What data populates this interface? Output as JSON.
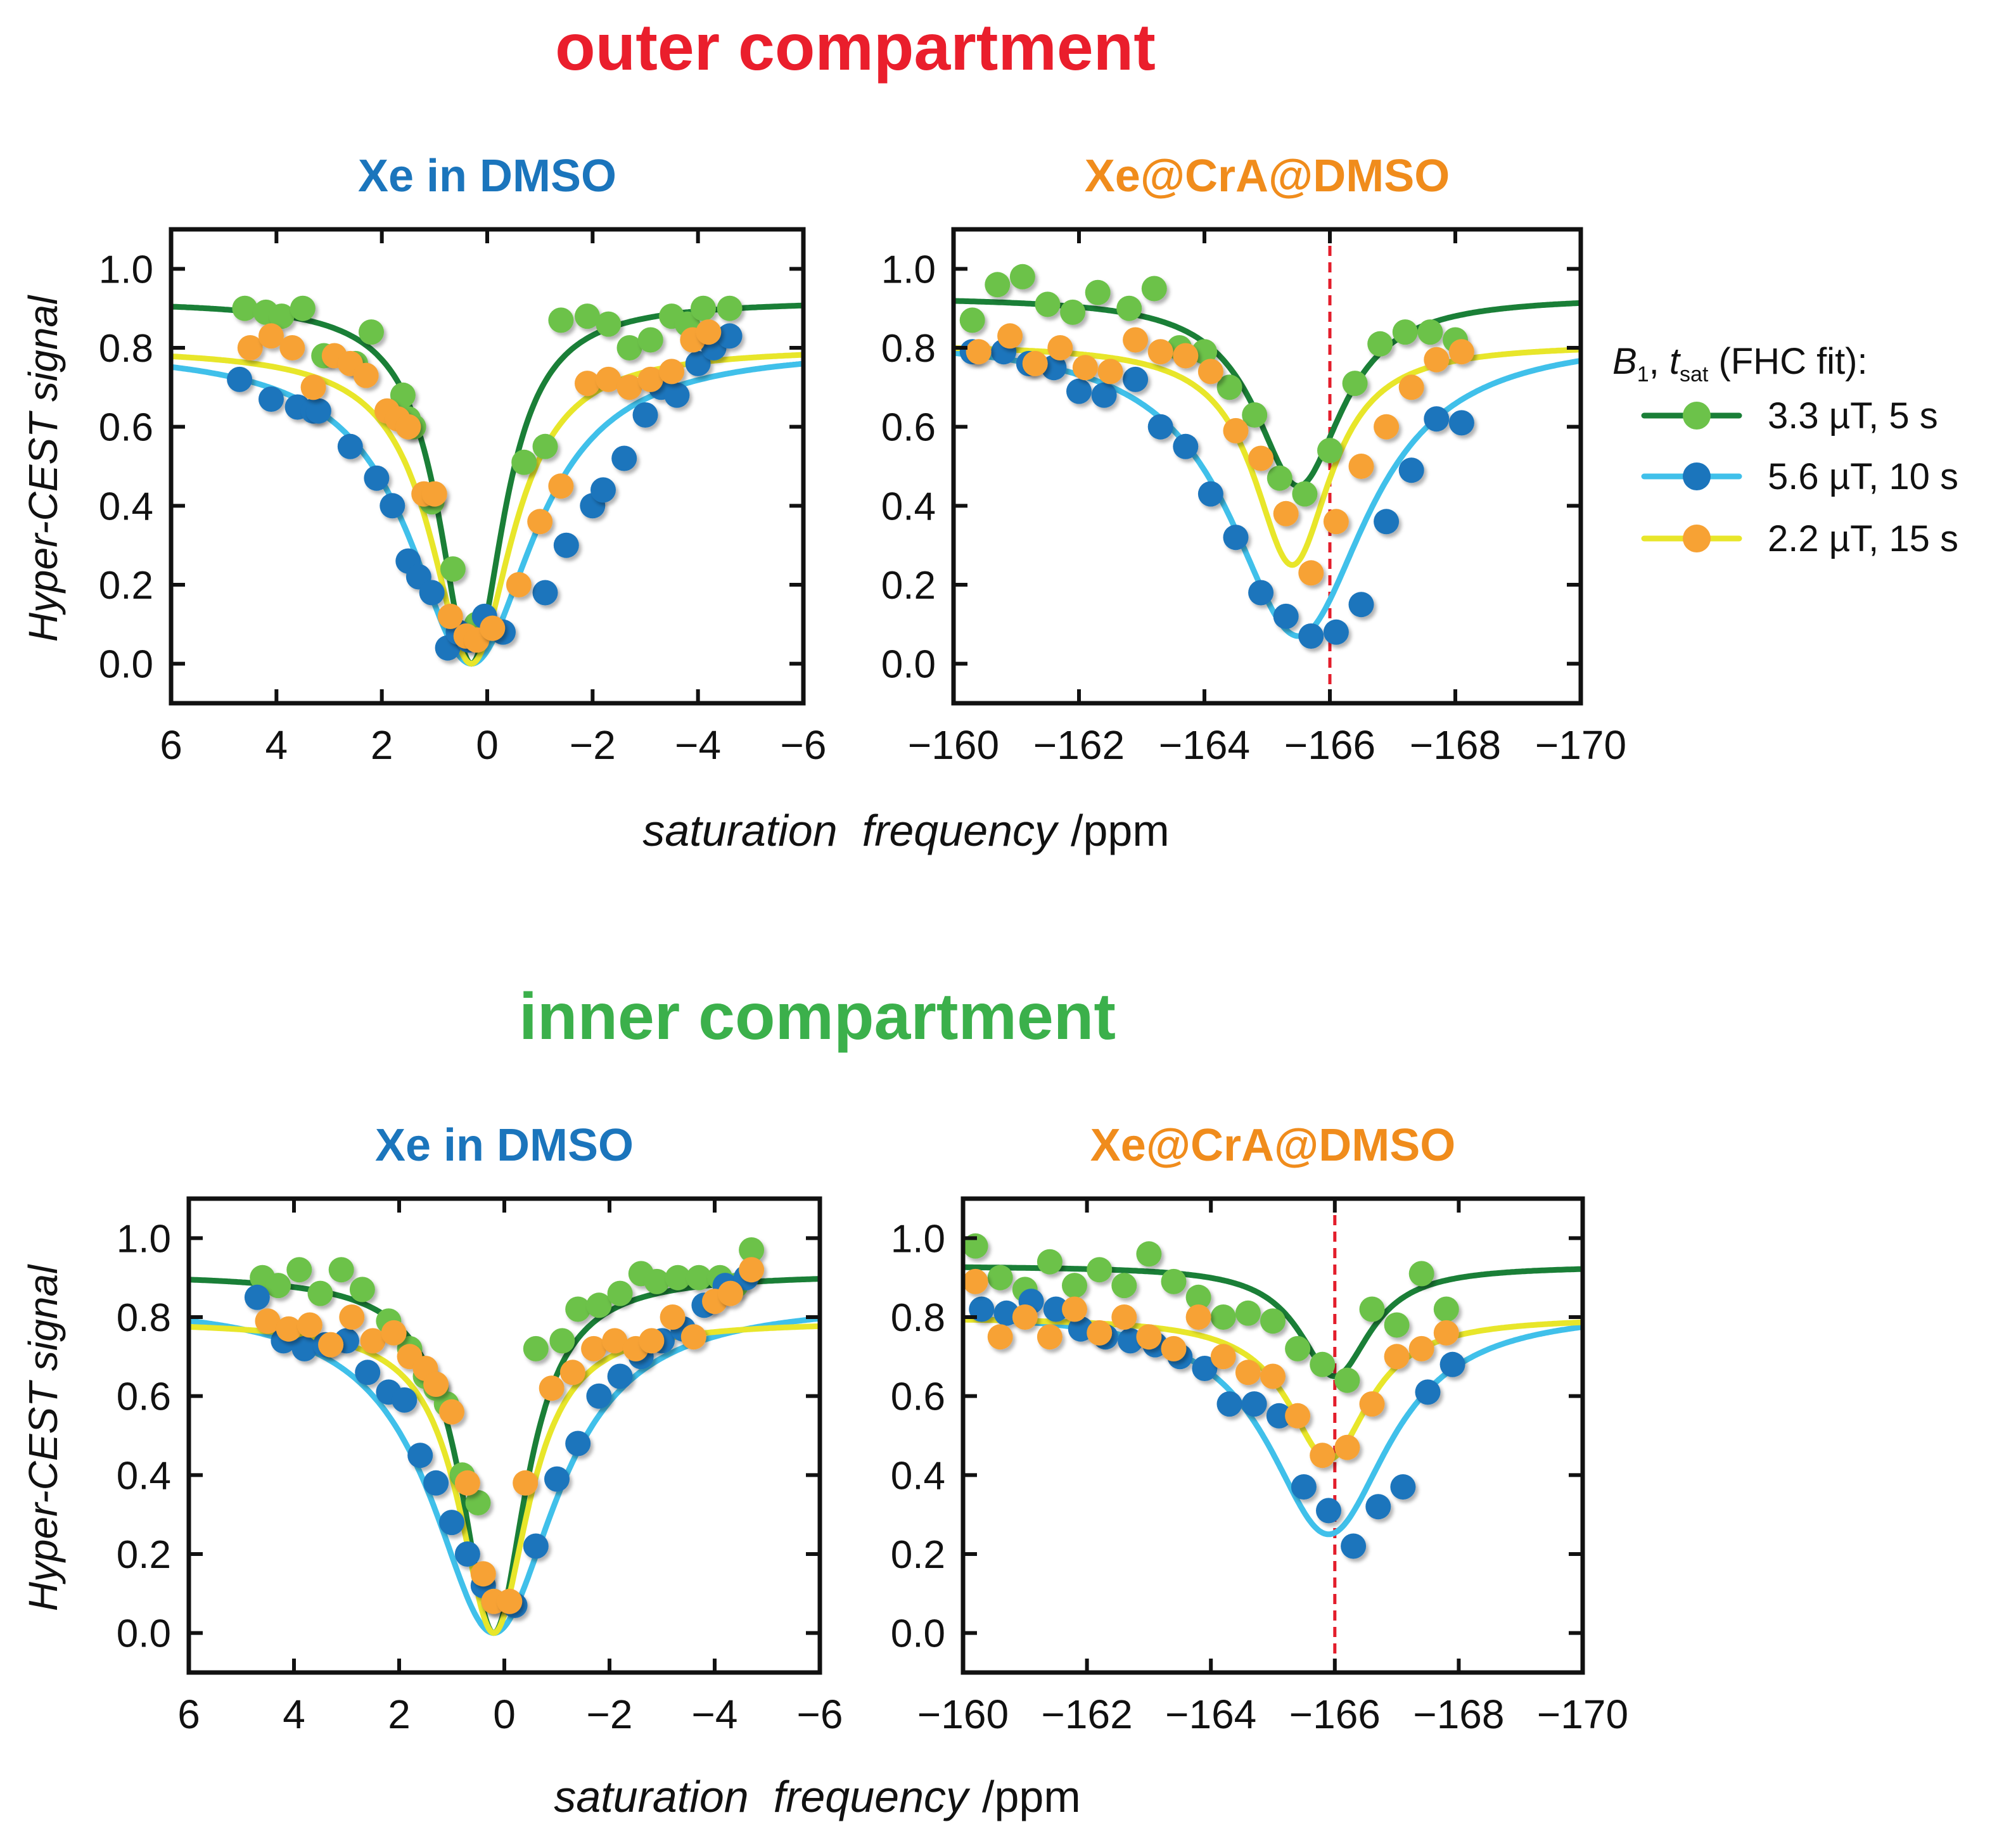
{
  "sections": {
    "outer": {
      "title": "outer compartment",
      "color": "#ea1e2c"
    },
    "inner": {
      "title": "inner compartment",
      "color": "#3bb04b"
    }
  },
  "common": {
    "ylabel": "Hyper-CEST signal",
    "xlabel_italic": "saturation  frequency",
    "xlabel_unit": "/ppm",
    "yticks": [
      "0.0",
      "0.2",
      "0.4",
      "0.6",
      "0.8",
      "1.0"
    ],
    "xticks_free": [
      "6",
      "4",
      "2",
      "0",
      "−2",
      "−4",
      "−6"
    ],
    "xticks_cra": [
      "−160",
      "−162",
      "−164",
      "−166",
      "−168",
      "−170"
    ]
  },
  "legend": {
    "title_b1": "B",
    "title_b1_sub": "1",
    "title_sep": ", ",
    "title_t": "t",
    "title_t_sub": "sat",
    "title_rest": " (FHC fit):",
    "items": [
      {
        "label": "3.3 µT, 5 s",
        "line_color": "#1a7f37",
        "dot_color": "#6cc24a"
      },
      {
        "label": "5.6 µT, 10 s",
        "line_color": "#40c0ea",
        "dot_color": "#1b75bc"
      },
      {
        "label": "2.2 µT, 15 s",
        "line_color": "#e8e62a",
        "dot_color": "#f7a234"
      }
    ]
  },
  "colors": {
    "free_title": "#1b75bc",
    "cra_title": "#f08c1c",
    "marker_line": "#e31d2b",
    "axis": "#111111"
  },
  "chart_data": [
    {
      "type": "scatter",
      "section": "outer",
      "title": "Xe in DMSO",
      "xlabel": "saturation frequency /ppm",
      "ylabel": "Hyper-CEST signal",
      "xlim": [
        6,
        -6
      ],
      "ylim": [
        -0.1,
        1.1
      ],
      "marker_line": null,
      "fits": [
        {
          "name": "3.3 µT, 5 s",
          "baseline": 0.92,
          "depth": 0.92,
          "center": 0.3,
          "width": 0.75
        },
        {
          "name": "5.6 µT, 10 s",
          "baseline": 0.8,
          "depth": 0.8,
          "center": 0.3,
          "width": 1.45
        },
        {
          "name": "2.2 µT, 15 s",
          "baseline": 0.8,
          "depth": 0.8,
          "center": 0.3,
          "width": 0.95
        }
      ],
      "series": [
        {
          "name": "3.3 µT, 5 s",
          "x": [
            4.6,
            4.2,
            3.9,
            3.5,
            3.1,
            2.5,
            2.2,
            1.6,
            1.5,
            1.4,
            1.05,
            0.65,
            0.2,
            -0.7,
            -1.1,
            -1.4,
            -1.9,
            -2.3,
            -2.7,
            -3.1,
            -3.5,
            -3.8,
            -4.1,
            -4.6
          ],
          "y": [
            0.9,
            0.89,
            0.88,
            0.9,
            0.78,
            0.76,
            0.84,
            0.68,
            0.62,
            0.6,
            0.41,
            0.24,
            0.1,
            0.51,
            0.55,
            0.87,
            0.88,
            0.86,
            0.8,
            0.82,
            0.88,
            0.86,
            0.9,
            0.9
          ]
        },
        {
          "name": "5.6 µT, 10 s",
          "x": [
            4.7,
            4.1,
            3.6,
            3.3,
            3.2,
            2.6,
            2.1,
            1.8,
            1.5,
            1.3,
            1.05,
            0.75,
            0.55,
            0.35,
            0.05,
            -0.3,
            -1.1,
            -1.5,
            -2.0,
            -2.2,
            -2.6,
            -3.0,
            -3.3,
            -3.6,
            -4.0,
            -4.3,
            -4.6
          ],
          "y": [
            0.72,
            0.67,
            0.65,
            0.64,
            0.64,
            0.55,
            0.47,
            0.4,
            0.26,
            0.22,
            0.18,
            0.04,
            0.08,
            0.06,
            0.12,
            0.08,
            0.18,
            0.3,
            0.4,
            0.44,
            0.52,
            0.63,
            0.7,
            0.68,
            0.76,
            0.8,
            0.83
          ]
        },
        {
          "name": "2.2 µT, 15 s",
          "x": [
            4.5,
            4.1,
            3.7,
            3.3,
            2.9,
            2.6,
            2.3,
            1.9,
            1.7,
            1.5,
            1.2,
            1.0,
            0.7,
            0.4,
            0.2,
            -0.1,
            -0.6,
            -1.0,
            -1.4,
            -1.9,
            -2.3,
            -2.7,
            -3.1,
            -3.5,
            -3.9,
            -4.2
          ],
          "y": [
            0.8,
            0.83,
            0.8,
            0.7,
            0.78,
            0.76,
            0.73,
            0.64,
            0.62,
            0.6,
            0.43,
            0.43,
            0.12,
            0.07,
            0.06,
            0.09,
            0.2,
            0.36,
            0.45,
            0.71,
            0.72,
            0.7,
            0.72,
            0.74,
            0.82,
            0.84
          ]
        }
      ]
    },
    {
      "type": "scatter",
      "section": "outer",
      "title": "Xe@CrA@DMSO",
      "xlabel": "saturation frequency /ppm",
      "ylabel": "Hyper-CEST signal",
      "xlim": [
        -160,
        -170
      ],
      "ylim": [
        -0.1,
        1.1
      ],
      "marker_line": -166,
      "fits": [
        {
          "name": "3.3 µT, 5 s",
          "baseline": 0.93,
          "depth": 0.48,
          "center": -165.5,
          "width": 0.85
        },
        {
          "name": "5.6 µT, 10 s",
          "baseline": 0.83,
          "depth": 0.76,
          "center": -165.5,
          "width": 1.35
        },
        {
          "name": "2.2 µT, 15 s",
          "baseline": 0.81,
          "depth": 0.56,
          "center": -165.4,
          "width": 0.75
        }
      ],
      "series": [
        {
          "name": "3.3 µT, 5 s",
          "x": [
            -160.3,
            -160.7,
            -161.1,
            -161.5,
            -161.9,
            -162.3,
            -162.8,
            -163.2,
            -163.6,
            -164.0,
            -164.4,
            -164.8,
            -165.2,
            -165.6,
            -166.0,
            -166.4,
            -166.8,
            -167.2,
            -167.6,
            -168.0
          ],
          "y": [
            0.87,
            0.96,
            0.98,
            0.91,
            0.89,
            0.94,
            0.9,
            0.95,
            0.8,
            0.79,
            0.7,
            0.63,
            0.47,
            0.43,
            0.54,
            0.71,
            0.81,
            0.84,
            0.84,
            0.82
          ]
        },
        {
          "name": "5.6 µT, 10 s",
          "x": [
            -160.3,
            -160.8,
            -161.2,
            -161.6,
            -162.0,
            -162.4,
            -162.9,
            -163.3,
            -163.7,
            -164.1,
            -164.5,
            -164.9,
            -165.3,
            -165.7,
            -166.1,
            -166.5,
            -166.9,
            -167.3,
            -167.7,
            -168.1
          ],
          "y": [
            0.79,
            0.79,
            0.76,
            0.75,
            0.69,
            0.68,
            0.72,
            0.6,
            0.55,
            0.43,
            0.32,
            0.18,
            0.12,
            0.07,
            0.08,
            0.15,
            0.36,
            0.49,
            0.62,
            0.61
          ]
        },
        {
          "name": "2.2 µT, 15 s",
          "x": [
            -160.4,
            -160.9,
            -161.3,
            -161.7,
            -162.1,
            -162.5,
            -162.9,
            -163.3,
            -163.7,
            -164.1,
            -164.5,
            -164.9,
            -165.3,
            -165.7,
            -166.1,
            -166.5,
            -166.9,
            -167.3,
            -167.7,
            -168.1
          ],
          "y": [
            0.79,
            0.83,
            0.76,
            0.8,
            0.75,
            0.74,
            0.82,
            0.79,
            0.78,
            0.74,
            0.59,
            0.52,
            0.38,
            0.23,
            0.36,
            0.5,
            0.6,
            0.7,
            0.77,
            0.79
          ]
        }
      ]
    },
    {
      "type": "scatter",
      "section": "inner",
      "title": "Xe in DMSO",
      "xlabel": "saturation frequency /ppm",
      "ylabel": "Hyper-CEST signal",
      "xlim": [
        6,
        -6
      ],
      "ylim": [
        -0.1,
        1.1
      ],
      "marker_line": null,
      "fits": [
        {
          "name": "3.3 µT, 5 s",
          "baseline": 0.91,
          "depth": 0.91,
          "center": 0.2,
          "width": 0.75
        },
        {
          "name": "5.6 µT, 10 s",
          "baseline": 0.84,
          "depth": 0.84,
          "center": 0.2,
          "width": 1.45
        },
        {
          "name": "2.2 µT, 15 s",
          "baseline": 0.79,
          "depth": 0.79,
          "center": 0.2,
          "width": 0.8
        }
      ],
      "series": [
        {
          "name": "3.3 µT, 5 s",
          "x": [
            4.6,
            4.3,
            3.9,
            3.5,
            3.1,
            2.7,
            2.2,
            1.8,
            1.5,
            1.3,
            1.1,
            0.8,
            0.5,
            -0.6,
            -1.1,
            -1.4,
            -1.8,
            -2.2,
            -2.6,
            -2.9,
            -3.3,
            -3.7,
            -4.1,
            -4.4,
            -4.7
          ],
          "y": [
            0.9,
            0.88,
            0.92,
            0.86,
            0.92,
            0.87,
            0.79,
            0.72,
            0.65,
            0.62,
            0.58,
            0.4,
            0.33,
            0.72,
            0.74,
            0.82,
            0.83,
            0.86,
            0.91,
            0.89,
            0.9,
            0.9,
            0.9,
            0.88,
            0.97
          ]
        },
        {
          "name": "5.6 µT, 10 s",
          "x": [
            4.7,
            4.2,
            3.8,
            3.4,
            3.0,
            2.6,
            2.2,
            1.9,
            1.6,
            1.3,
            1.0,
            0.7,
            0.4,
            0.2,
            -0.2,
            -0.6,
            -1.0,
            -1.4,
            -1.8,
            -2.2,
            -2.6,
            -3.0,
            -3.4,
            -3.8,
            -4.2,
            -4.6
          ],
          "y": [
            0.85,
            0.74,
            0.72,
            0.73,
            0.74,
            0.66,
            0.61,
            0.59,
            0.45,
            0.38,
            0.28,
            0.2,
            0.12,
            0.08,
            0.07,
            0.22,
            0.39,
            0.48,
            0.6,
            0.65,
            0.7,
            0.74,
            0.77,
            0.83,
            0.88,
            0.9
          ]
        },
        {
          "name": "2.2 µT, 15 s",
          "x": [
            4.5,
            4.1,
            3.7,
            3.3,
            2.9,
            2.5,
            2.1,
            1.8,
            1.5,
            1.3,
            1.0,
            0.7,
            0.4,
            0.2,
            -0.1,
            -0.4,
            -0.9,
            -1.3,
            -1.7,
            -2.1,
            -2.5,
            -2.8,
            -3.2,
            -3.6,
            -4.0,
            -4.3,
            -4.7
          ],
          "y": [
            0.79,
            0.77,
            0.78,
            0.73,
            0.8,
            0.74,
            0.76,
            0.7,
            0.67,
            0.63,
            0.56,
            0.38,
            0.15,
            0.08,
            0.08,
            0.38,
            0.62,
            0.66,
            0.72,
            0.74,
            0.72,
            0.74,
            0.8,
            0.75,
            0.84,
            0.86,
            0.92
          ]
        }
      ]
    },
    {
      "type": "scatter",
      "section": "inner",
      "title": "Xe@CrA@DMSO",
      "xlabel": "saturation frequency /ppm",
      "ylabel": "Hyper-CEST signal",
      "xlim": [
        -160,
        -170
      ],
      "ylim": [
        -0.1,
        1.1
      ],
      "marker_line": -166,
      "fits": [
        {
          "name": "3.3 µT, 5 s",
          "baseline": 0.93,
          "depth": 0.28,
          "center": -166.0,
          "width": 0.7
        },
        {
          "name": "5.6 µT, 10 s",
          "baseline": 0.82,
          "depth": 0.57,
          "center": -165.9,
          "width": 1.2
        },
        {
          "name": "2.2 µT, 15 s",
          "baseline": 0.8,
          "depth": 0.36,
          "center": -165.9,
          "width": 0.8
        }
      ],
      "series": [
        {
          "name": "3.3 µT, 5 s",
          "x": [
            -160.2,
            -160.6,
            -161.0,
            -161.4,
            -161.8,
            -162.2,
            -162.6,
            -163.0,
            -163.4,
            -163.8,
            -164.2,
            -164.6,
            -165.0,
            -165.4,
            -165.8,
            -166.2,
            -166.6,
            -167.0,
            -167.4,
            -167.8
          ],
          "y": [
            0.98,
            0.9,
            0.87,
            0.94,
            0.88,
            0.92,
            0.88,
            0.96,
            0.89,
            0.85,
            0.8,
            0.81,
            0.79,
            0.72,
            0.68,
            0.64,
            0.82,
            0.78,
            0.91,
            0.82
          ]
        },
        {
          "name": "5.6 µT, 10 s",
          "x": [
            -160.3,
            -160.7,
            -161.1,
            -161.5,
            -161.9,
            -162.3,
            -162.7,
            -163.1,
            -163.5,
            -163.9,
            -164.3,
            -164.7,
            -165.1,
            -165.5,
            -165.9,
            -166.3,
            -166.7,
            -167.1,
            -167.5,
            -167.9
          ],
          "y": [
            0.82,
            0.81,
            0.84,
            0.82,
            0.77,
            0.75,
            0.74,
            0.73,
            0.7,
            0.67,
            0.58,
            0.58,
            0.55,
            0.37,
            0.31,
            0.22,
            0.32,
            0.37,
            0.61,
            0.68
          ]
        },
        {
          "name": "2.2 µT, 15 s",
          "x": [
            -160.2,
            -160.6,
            -161.0,
            -161.4,
            -161.8,
            -162.2,
            -162.6,
            -163.0,
            -163.4,
            -163.8,
            -164.2,
            -164.6,
            -165.0,
            -165.4,
            -165.8,
            -166.2,
            -166.6,
            -167.0,
            -167.4,
            -167.8
          ],
          "y": [
            0.89,
            0.75,
            0.8,
            0.75,
            0.82,
            0.76,
            0.8,
            0.75,
            0.72,
            0.8,
            0.7,
            0.66,
            0.65,
            0.55,
            0.45,
            0.47,
            0.58,
            0.7,
            0.72,
            0.76
          ]
        }
      ]
    }
  ]
}
